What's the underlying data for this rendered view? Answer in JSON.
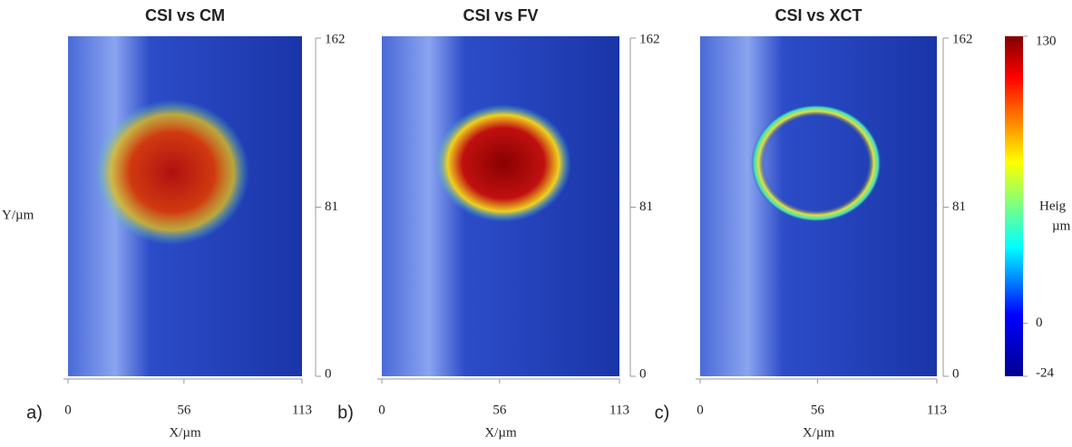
{
  "chart_data": [
    {
      "type": "image",
      "title": "CSI vs CM",
      "panel_label": "a)",
      "xlabel": "X/µm",
      "ylabel": "Y/µm",
      "xlim": [
        0,
        113
      ],
      "xticks": [
        0,
        56,
        113
      ],
      "ylim": [
        0,
        162
      ],
      "yticks": [
        0,
        81,
        162
      ]
    },
    {
      "type": "image",
      "title": "CSI vs FV",
      "panel_label": "b)",
      "xlabel": "X/µm",
      "xlim": [
        0,
        113
      ],
      "xticks": [
        0,
        56,
        113
      ],
      "ylim": [
        0,
        162
      ],
      "yticks": [
        0,
        81,
        162
      ]
    },
    {
      "type": "image",
      "title": "CSI vs XCT",
      "panel_label": "c)",
      "xlabel": "X/µm",
      "xlim": [
        0,
        113
      ],
      "xticks": [
        0,
        56,
        113
      ],
      "ylim": [
        0,
        162
      ],
      "yticks": [
        0,
        81,
        162
      ]
    },
    {
      "type": "colorbar",
      "label": [
        "Heig",
        "µm"
      ],
      "clim": [
        -24,
        130
      ],
      "ticks": [
        130,
        0,
        -24
      ]
    }
  ]
}
